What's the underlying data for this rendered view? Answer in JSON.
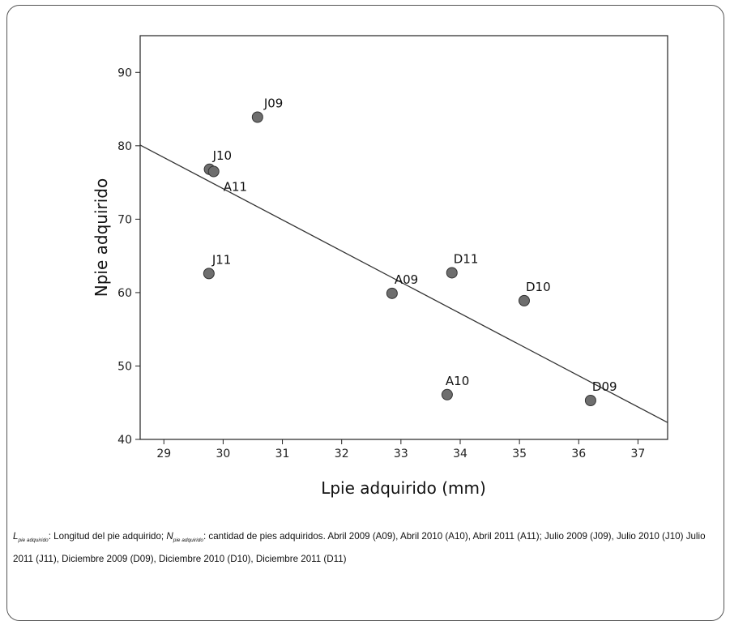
{
  "chart_data": {
    "type": "scatter",
    "xlabel": "Lpie adquirido (mm)",
    "ylabel": "Npie adquirido",
    "xlim": [
      28.6,
      37.5
    ],
    "ylim": [
      40,
      95
    ],
    "xticks": [
      29,
      30,
      31,
      32,
      33,
      34,
      35,
      36,
      37
    ],
    "yticks": [
      40,
      50,
      60,
      70,
      80,
      90
    ],
    "grid": false,
    "points": [
      {
        "label": "J09",
        "x": 30.58,
        "y": 83.9
      },
      {
        "label": "J10",
        "x": 29.77,
        "y": 76.8
      },
      {
        "label": "A11",
        "x": 29.84,
        "y": 76.5
      },
      {
        "label": "J11",
        "x": 29.76,
        "y": 62.6
      },
      {
        "label": "A09",
        "x": 32.85,
        "y": 59.9
      },
      {
        "label": "D11",
        "x": 33.86,
        "y": 62.7
      },
      {
        "label": "D10",
        "x": 35.08,
        "y": 58.9
      },
      {
        "label": "A10",
        "x": 33.78,
        "y": 46.1
      },
      {
        "label": "D09",
        "x": 36.2,
        "y": 45.3
      }
    ],
    "fit_line": {
      "x": [
        28.6,
        37.5
      ],
      "y": [
        80.1,
        42.3
      ]
    },
    "colors": {
      "marker": "#6e6e6e",
      "marker_edge": "#333333",
      "line": "#333333"
    }
  },
  "caption": {
    "l_var": "L",
    "l_sub": "pie adquirido",
    "l_text": ": Longitud del pie adquirido; ",
    "n_var": "N",
    "n_sub": "pie adquirido",
    "n_text": ": cantidad de pies adquiridos. Abril 2009 (A09), Abril 2010 (A10), Abril 2011 (A11); Julio 2009 (J09), Julio 2010 (J10) Julio 2011 (J11), Diciembre 2009 (D09), Diciembre 2010 (D10), Diciembre 2011 (D11)"
  }
}
